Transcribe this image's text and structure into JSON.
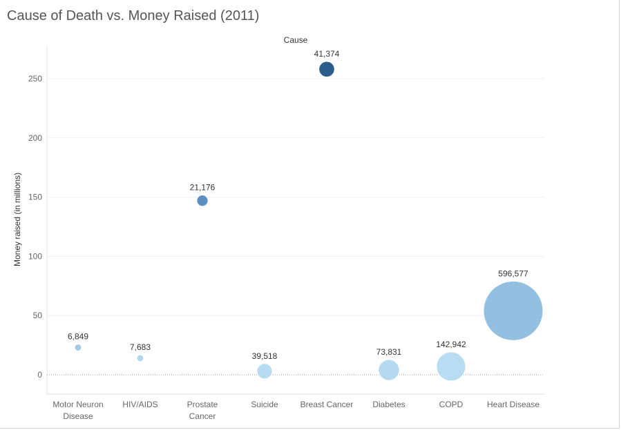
{
  "chart_data": {
    "type": "scatter",
    "title": "Cause of Death vs. Money Raised (2011)",
    "column_header": "Cause",
    "ylabel": "Money raised (in millions)",
    "ylim": [
      -20,
      270
    ],
    "yticks": [
      0,
      50,
      100,
      150,
      200,
      250
    ],
    "grid": true,
    "size_encodes": "deaths",
    "categories": [
      "Motor Neuron Disease",
      "HIV/AIDS",
      "Prostate Cancer",
      "Suicide",
      "Breast Cancer",
      "Diabetes",
      "COPD",
      "Heart Disease"
    ],
    "category_lines": [
      [
        "Motor Neuron",
        "Disease"
      ],
      [
        "HIV/AIDS"
      ],
      [
        "Prostate",
        "Cancer"
      ],
      [
        "Suicide"
      ],
      [
        "Breast Cancer"
      ],
      [
        "Diabetes"
      ],
      [
        "COPD"
      ],
      [
        "Heart Disease"
      ]
    ],
    "points": [
      {
        "cause": "Motor Neuron Disease",
        "money": 23,
        "deaths": 6849,
        "label": "6,849",
        "color": "#a6cbe6"
      },
      {
        "cause": "HIV/AIDS",
        "money": 14,
        "deaths": 7683,
        "label": "7,683",
        "color": "#b3d6ee"
      },
      {
        "cause": "Prostate Cancer",
        "money": 147,
        "deaths": 21176,
        "label": "21,176",
        "color": "#5c8fc1"
      },
      {
        "cause": "Suicide",
        "money": 3,
        "deaths": 39518,
        "label": "39,518",
        "color": "#b7dbf0"
      },
      {
        "cause": "Breast Cancer",
        "money": 258,
        "deaths": 41374,
        "label": "41,374",
        "color": "#2a5d8c"
      },
      {
        "cause": "Diabetes",
        "money": 4,
        "deaths": 73831,
        "label": "73,831",
        "color": "#b5daf0"
      },
      {
        "cause": "COPD",
        "money": 7,
        "deaths": 142942,
        "label": "142,942",
        "color": "#b8dcf1"
      },
      {
        "cause": "Heart Disease",
        "money": 54,
        "deaths": 596577,
        "label": "596,577",
        "color": "#93c0e0"
      }
    ]
  }
}
